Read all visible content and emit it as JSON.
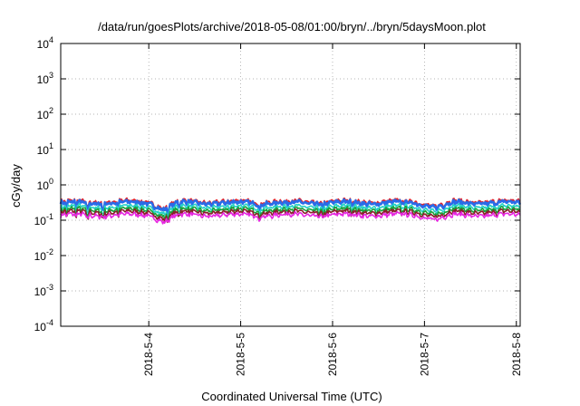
{
  "chart_data": {
    "type": "line",
    "title": "/data/run/goesPlots/archive/2018-05-08/01:00/bryn/../bryn/5daysMoon.plot",
    "xlabel": "Coordinated Universal Time (UTC)",
    "ylabel": "cGy/day",
    "yscale": "log",
    "ylim": [
      0.0001,
      10000
    ],
    "y_ticks": [
      {
        "value": 0.0001,
        "base": "10",
        "exp": "-4"
      },
      {
        "value": 0.001,
        "base": "10",
        "exp": "-3"
      },
      {
        "value": 0.01,
        "base": "10",
        "exp": "-2"
      },
      {
        "value": 0.1,
        "base": "10",
        "exp": "-1"
      },
      {
        "value": 1,
        "base": "10",
        "exp": "0"
      },
      {
        "value": 10,
        "base": "10",
        "exp": "1"
      },
      {
        "value": 100,
        "base": "10",
        "exp": "2"
      },
      {
        "value": 1000,
        "base": "10",
        "exp": "3"
      },
      {
        "value": 10000,
        "base": "10",
        "exp": "4"
      }
    ],
    "xlim": [
      "2018-05-03 01:00",
      "2018-05-08 01:00"
    ],
    "x_ticks": [
      {
        "value": "2018-05-04 00:00",
        "label": "2018-5-4"
      },
      {
        "value": "2018-05-05 00:00",
        "label": "2018-5-5"
      },
      {
        "value": "2018-05-06 00:00",
        "label": "2018-5-6"
      },
      {
        "value": "2018-05-07 00:00",
        "label": "2018-5-7"
      },
      {
        "value": "2018-05-08 00:00",
        "label": "2018-5-8"
      }
    ],
    "grid": true,
    "series": [
      {
        "color": "#e0202a",
        "base": 0.34,
        "dip": 0.6
      },
      {
        "color": "#2a6be8",
        "base": 0.31,
        "dip": 0.62
      },
      {
        "color": "#25d1c8",
        "base": 0.24,
        "dip": 0.65
      },
      {
        "color": "#16a33c",
        "base": 0.2,
        "dip": 0.68
      },
      {
        "color": "#8a1f2a",
        "base": 0.17,
        "dip": 0.7
      },
      {
        "color": "#e626e0",
        "base": 0.14,
        "dip": 0.35
      }
    ],
    "events": [
      {
        "time": "2018-05-03 02:30",
        "depth": 0.55
      },
      {
        "time": "2018-05-03 05:00",
        "depth": 0.5
      },
      {
        "time": "2018-05-03 08:00",
        "depth": 0.45
      },
      {
        "time": "2018-05-03 12:00",
        "depth": 0.55
      },
      {
        "time": "2018-05-03 16:00",
        "depth": 0.6
      },
      {
        "time": "2018-05-04 05:00",
        "depth": 0.55
      },
      {
        "time": "2018-05-04 08:00",
        "depth": 0.6
      },
      {
        "time": "2018-05-04 21:00",
        "depth": 0.7
      },
      {
        "time": "2018-05-05 05:00",
        "depth": 0.4
      },
      {
        "time": "2018-05-05 12:00",
        "depth": 0.7
      },
      {
        "time": "2018-05-05 21:30",
        "depth": 0.5
      },
      {
        "time": "2018-05-06 05:00",
        "depth": 0.7
      },
      {
        "time": "2018-05-06 18:00",
        "depth": 0.7
      },
      {
        "time": "2018-05-07 05:00",
        "depth": 0.7
      },
      {
        "time": "2018-05-07 19:00",
        "depth": 0.75
      }
    ],
    "broad_dips": [
      {
        "center": "2018-05-04 04:00",
        "width_h": 4,
        "factor": 0.65
      },
      {
        "center": "2018-05-07 03:00",
        "width_h": 5,
        "factor": 0.75
      }
    ]
  }
}
